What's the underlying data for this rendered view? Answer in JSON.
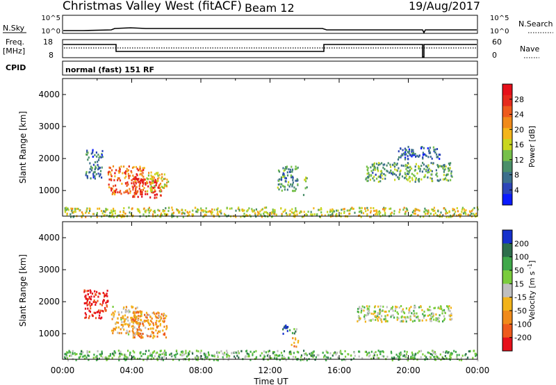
{
  "header": {
    "station": "Christmas Valley West (fitACF)",
    "beam": "Beam 12",
    "date": "19/Aug/2017"
  },
  "panels": {
    "nsky": {
      "label": "N.Sky",
      "y_ticks": [
        "10^5",
        "10^0"
      ],
      "right_label": "N.Search",
      "right_ticks": [
        "10^5",
        "10^0"
      ]
    },
    "freq": {
      "label_line1": "Freq.",
      "label_line2": "[MHz]",
      "left_ticks": [
        "18",
        "8"
      ],
      "right_label": "Nave",
      "right_ticks": [
        "60",
        "0"
      ]
    },
    "cpid": {
      "label": "CPID",
      "program": "normal (fast) 151 RF"
    }
  },
  "chart_data": [
    {
      "type": "heatmap",
      "variable": "Power",
      "ylabel": "Slant Range [km]",
      "xlabel": "Time UT",
      "ylim": [
        200,
        4500
      ],
      "yticks": [
        1000,
        2000,
        3000,
        4000
      ],
      "xlim_hours": [
        0,
        24
      ],
      "xtick_labels": [
        "00:00",
        "04:00",
        "08:00",
        "12:00",
        "16:00",
        "20:00",
        "00:00"
      ],
      "colorbar": {
        "label": "Power [dB]",
        "tick_labels": [
          "4",
          "8",
          "12",
          "16",
          "20",
          "24",
          "28"
        ],
        "colors": [
          "#0a1aff",
          "#2c45b8",
          "#3c6f8c",
          "#4a8f6a",
          "#76c04a",
          "#c9d61e",
          "#f4b51a",
          "#f08a1a",
          "#ee5a1c",
          "#e62a1c",
          "#e6101a"
        ]
      },
      "scatter_regions": [
        {
          "t": [
            1.3,
            2.3
          ],
          "r": [
            1400,
            2300
          ],
          "level": 0.25
        },
        {
          "t": [
            2.6,
            4.7
          ],
          "r": [
            900,
            1800
          ],
          "level": 0.75
        },
        {
          "t": [
            4.0,
            5.7
          ],
          "r": [
            800,
            1400
          ],
          "level": 0.9
        },
        {
          "t": [
            4.8,
            6.1
          ],
          "r": [
            1000,
            1600
          ],
          "level": 0.55
        },
        {
          "t": [
            12.4,
            13.6
          ],
          "r": [
            1000,
            1800
          ],
          "level": 0.3
        },
        {
          "t": [
            13.9,
            14.1
          ],
          "r": [
            800,
            1500
          ],
          "level": 0.45
        },
        {
          "t": [
            17.5,
            22.5
          ],
          "r": [
            1300,
            1900
          ],
          "level": 0.35
        },
        {
          "t": [
            19.3,
            21.8
          ],
          "r": [
            2000,
            2400
          ],
          "level": 0.2
        },
        {
          "t": [
            0,
            24
          ],
          "r": [
            200,
            500
          ],
          "level": 0.5
        }
      ]
    },
    {
      "type": "heatmap",
      "variable": "Velocity",
      "ylabel": "Slant Range [km]",
      "xlabel": "Time UT",
      "ylim": [
        200,
        4500
      ],
      "yticks": [
        1000,
        2000,
        3000,
        4000
      ],
      "xlim_hours": [
        0,
        24
      ],
      "xtick_labels": [
        "00:00",
        "04:00",
        "08:00",
        "12:00",
        "16:00",
        "20:00",
        "00:00"
      ],
      "colorbar": {
        "label": "Velocity [m s^-1]",
        "tick_labels": [
          "200",
          "100",
          "50",
          "15",
          "-15",
          "-50",
          "-100",
          "-200"
        ],
        "colors": [
          "#1530cc",
          "#2d6e4c",
          "#3fa84a",
          "#7acc3c",
          "#bfbfbf",
          "#f2b31a",
          "#f08a1a",
          "#ee5a1c",
          "#e6101a"
        ]
      },
      "scatter_regions": [
        {
          "t": [
            1.2,
            2.6
          ],
          "r": [
            1500,
            2400
          ],
          "level": 0.95
        },
        {
          "t": [
            2.8,
            4.6
          ],
          "r": [
            1000,
            1900
          ],
          "level": 0.6
        },
        {
          "t": [
            4.0,
            6.0
          ],
          "r": [
            900,
            1700
          ],
          "level": 0.7
        },
        {
          "t": [
            12.7,
            13.1
          ],
          "r": [
            1000,
            1300
          ],
          "level": 0.05
        },
        {
          "t": [
            13.1,
            13.5
          ],
          "r": [
            1000,
            1200
          ],
          "level": 0.3
        },
        {
          "t": [
            13.2,
            13.6
          ],
          "r": [
            600,
            900
          ],
          "level": 0.7
        },
        {
          "t": [
            17.0,
            22.5
          ],
          "r": [
            1400,
            1900
          ],
          "level": 0.45
        },
        {
          "t": [
            0,
            24
          ],
          "r": [
            200,
            500
          ],
          "level": 0.35
        }
      ]
    }
  ]
}
